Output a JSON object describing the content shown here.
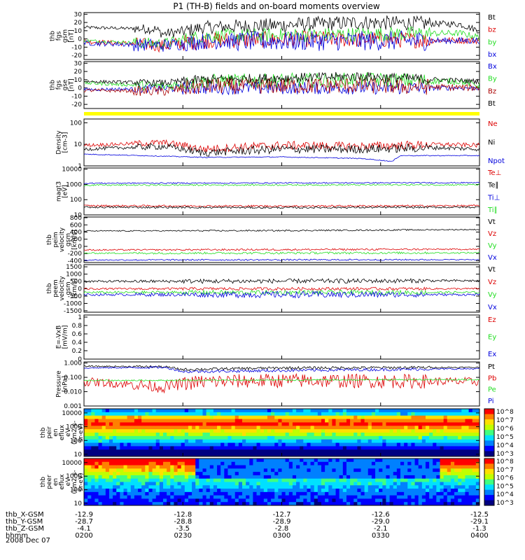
{
  "title": "P1 (TH-B) fields and on-board moments overview",
  "date": "2008 Dec 07",
  "colors": {
    "black": "#000000",
    "red": "#dd0000",
    "green": "#22dd22",
    "blue": "#0000dd",
    "darkred": "#aa0000",
    "yellow": "#ffff00"
  },
  "chart_data": [
    {
      "type": "line",
      "panel": "fgs-gsm",
      "ylabel": [
        "thb",
        "fgs",
        "gsm",
        "[nT]"
      ],
      "yticks": [
        30,
        20,
        10,
        0,
        -10,
        -20
      ],
      "ylim": [
        -25,
        32
      ],
      "series": [
        {
          "name": "Bt",
          "color": "black",
          "trace": [
            [
              0,
              14
            ],
            [
              0.18,
              12
            ],
            [
              0.2,
              6
            ],
            [
              0.26,
              10
            ],
            [
              0.3,
              14
            ],
            [
              0.45,
              16
            ],
            [
              0.7,
              20
            ],
            [
              0.95,
              18
            ],
            [
              1,
              10
            ]
          ],
          "noise": [
            2,
            6,
            8,
            9,
            9,
            9,
            9,
            4
          ]
        },
        {
          "name": "bz",
          "color": "red",
          "trace": [
            [
              0,
              -3
            ],
            [
              0.2,
              -8
            ],
            [
              0.3,
              -2
            ],
            [
              0.6,
              0
            ],
            [
              1,
              -2
            ]
          ],
          "noise": [
            3,
            8,
            10,
            10,
            10,
            10,
            10,
            4
          ]
        },
        {
          "name": "by",
          "color": "green",
          "trace": [
            [
              0,
              -2
            ],
            [
              0.2,
              -6
            ],
            [
              0.3,
              3
            ],
            [
              0.6,
              5
            ],
            [
              0.95,
              7
            ],
            [
              1,
              2
            ]
          ],
          "noise": [
            2,
            7,
            9,
            9,
            9,
            9,
            9,
            4
          ]
        },
        {
          "name": "bx",
          "color": "blue",
          "trace": [
            [
              0,
              -5
            ],
            [
              0.2,
              -8
            ],
            [
              0.3,
              -3
            ],
            [
              1,
              -2
            ]
          ],
          "noise": [
            3,
            8,
            10,
            12,
            12,
            12,
            12,
            4
          ]
        }
      ]
    },
    {
      "type": "line",
      "panel": "fgs-gse",
      "ylabel": [
        "thb",
        "fgs",
        "gse",
        "[nT]"
      ],
      "yticks": [
        30,
        20,
        10,
        0,
        -10,
        -20
      ],
      "ylim": [
        -25,
        32
      ],
      "series": [
        {
          "name": "Bx",
          "color": "blue",
          "trace": [
            [
              0,
              -2
            ],
            [
              0.3,
              0
            ],
            [
              1,
              0
            ]
          ],
          "noise": [
            2,
            5,
            8,
            8,
            8,
            8,
            8,
            3
          ]
        },
        {
          "name": "By",
          "color": "green",
          "trace": [
            [
              0,
              6
            ],
            [
              0.2,
              2
            ],
            [
              0.3,
              8
            ],
            [
              0.7,
              10
            ],
            [
              0.95,
              8
            ],
            [
              1,
              3
            ]
          ],
          "noise": [
            2,
            6,
            9,
            9,
            9,
            9,
            9,
            4
          ]
        },
        {
          "name": "Bz",
          "color": "darkred",
          "trace": [
            [
              0,
              -3
            ],
            [
              0.2,
              -4
            ],
            [
              0.3,
              2
            ],
            [
              0.7,
              3
            ],
            [
              1,
              0
            ]
          ],
          "noise": [
            2,
            6,
            10,
            10,
            10,
            10,
            10,
            4
          ]
        },
        {
          "name": "Bt",
          "color": "black",
          "trace": [
            [
              0,
              8
            ],
            [
              0.2,
              6
            ],
            [
              0.3,
              10
            ],
            [
              0.7,
              14
            ],
            [
              1,
              8
            ]
          ],
          "noise": [
            2,
            4,
            6,
            6,
            6,
            6,
            6,
            3
          ]
        }
      ]
    },
    {
      "type": "bar",
      "panel": "status",
      "series": [
        {
          "name": "status",
          "color": "yellow",
          "values": [
            1
          ]
        }
      ]
    },
    {
      "type": "line",
      "panel": "density",
      "log": true,
      "ylabel": [
        "Density",
        "[cm-3]"
      ],
      "yticks": [
        100,
        10,
        1
      ],
      "ylim": [
        1,
        150
      ],
      "series": [
        {
          "name": "Ne",
          "color": "red",
          "trace": [
            [
              0,
              9
            ],
            [
              0.2,
              12
            ],
            [
              0.3,
              6
            ],
            [
              0.5,
              9
            ],
            [
              0.7,
              8
            ],
            [
              0.9,
              10
            ],
            [
              1,
              9
            ]
          ],
          "noise": [
            0.08,
            0.15,
            0.18,
            0.2,
            0.2,
            0.2,
            0.2,
            0.1
          ]
        },
        {
          "name": "Ni",
          "color": "black",
          "trace": [
            [
              0,
              6
            ],
            [
              0.2,
              8
            ],
            [
              0.3,
              4
            ],
            [
              0.5,
              6
            ],
            [
              0.7,
              6
            ],
            [
              0.9,
              7
            ],
            [
              1,
              6
            ]
          ],
          "noise": [
            0.08,
            0.15,
            0.18,
            0.2,
            0.2,
            0.2,
            0.2,
            0.1
          ]
        },
        {
          "name": "Npot",
          "color": "blue",
          "trace": [
            [
              0,
              3.5
            ],
            [
              0.3,
              2.5
            ],
            [
              0.5,
              2.6
            ],
            [
              0.7,
              2.2
            ],
            [
              0.78,
              1.6
            ],
            [
              0.8,
              3
            ],
            [
              1,
              3
            ]
          ],
          "noise": [
            0.02,
            0.02,
            0.02,
            0.02,
            0.02,
            0.02,
            0.02,
            0.02
          ]
        }
      ]
    },
    {
      "type": "line",
      "panel": "temperature",
      "log": true,
      "ylabel": [
        "magt3",
        "[eV]"
      ],
      "yticks": [
        10000,
        1000,
        100,
        10
      ],
      "ylim": [
        10,
        12000
      ],
      "series": [
        {
          "name": "Te⊥",
          "color": "red",
          "trace": [
            [
              0,
              40
            ],
            [
              0.5,
              38
            ],
            [
              1,
              40
            ]
          ],
          "noise": [
            0.06,
            0.06,
            0.06,
            0.06,
            0.06,
            0.06,
            0.06,
            0.06
          ]
        },
        {
          "name": "Te∥",
          "color": "black",
          "trace": [
            [
              0,
              32
            ],
            [
              0.5,
              30
            ],
            [
              1,
              32
            ]
          ],
          "noise": [
            0.06,
            0.06,
            0.06,
            0.06,
            0.06,
            0.06,
            0.06,
            0.06
          ]
        },
        {
          "name": "Ti⊥",
          "color": "blue",
          "trace": [
            [
              0,
              1200
            ],
            [
              1,
              1300
            ]
          ],
          "noise": [
            0.04,
            0.04,
            0.04,
            0.04,
            0.04,
            0.04,
            0.04,
            0.04
          ]
        },
        {
          "name": "Ti∥",
          "color": "green",
          "trace": [
            [
              0,
              900
            ],
            [
              1,
              950
            ]
          ],
          "noise": [
            0.05,
            0.05,
            0.05,
            0.05,
            0.05,
            0.05,
            0.05,
            0.05
          ]
        }
      ]
    },
    {
      "type": "line",
      "panel": "peim-velocity",
      "ylabel": [
        "thb",
        "peim",
        "velocity",
        "gsm",
        "[km/s]"
      ],
      "yticks": [
        800,
        600,
        400,
        200,
        0,
        -200,
        -400
      ],
      "ylim": [
        -450,
        820
      ],
      "series": [
        {
          "name": "Vt",
          "color": "black",
          "trace": [
            [
              0,
              430
            ],
            [
              0.5,
              440
            ],
            [
              1,
              470
            ]
          ],
          "noise": [
            15,
            15,
            20,
            20,
            20,
            20,
            20,
            15
          ]
        },
        {
          "name": "Vz",
          "color": "red",
          "trace": [
            [
              0,
              -100
            ],
            [
              1,
              -80
            ]
          ],
          "noise": [
            20,
            20,
            25,
            25,
            25,
            25,
            25,
            20
          ]
        },
        {
          "name": "Vy",
          "color": "green",
          "trace": [
            [
              0,
              -190
            ],
            [
              1,
              -180
            ]
          ],
          "noise": [
            20,
            30,
            30,
            30,
            30,
            30,
            30,
            20
          ]
        },
        {
          "name": "Vx",
          "color": "blue",
          "trace": [
            [
              0,
              -380
            ],
            [
              1,
              -370
            ]
          ],
          "noise": [
            15,
            20,
            20,
            20,
            20,
            20,
            20,
            15
          ]
        }
      ]
    },
    {
      "type": "line",
      "panel": "peem-velocity",
      "ylabel": [
        "thb",
        "peem",
        "velocity",
        "gsm",
        "[km/s]"
      ],
      "yticks": [
        1500,
        1000,
        500,
        0,
        -500,
        -1000,
        -1500
      ],
      "ylim": [
        -1600,
        1650
      ],
      "series": [
        {
          "name": "Vt",
          "color": "black",
          "trace": [
            [
              0,
              500
            ],
            [
              1,
              550
            ]
          ],
          "noise": [
            80,
            100,
            150,
            150,
            150,
            150,
            150,
            80
          ]
        },
        {
          "name": "Vz",
          "color": "red",
          "trace": [
            [
              0,
              0
            ],
            [
              1,
              0
            ]
          ],
          "noise": [
            60,
            80,
            100,
            100,
            100,
            100,
            100,
            60
          ]
        },
        {
          "name": "Vy",
          "color": "green",
          "trace": [
            [
              0,
              -250
            ],
            [
              1,
              -250
            ]
          ],
          "noise": [
            80,
            100,
            150,
            150,
            150,
            150,
            150,
            80
          ]
        },
        {
          "name": "Vx",
          "color": "blue",
          "trace": [
            [
              0,
              -400
            ],
            [
              1,
              -400
            ]
          ],
          "noise": [
            80,
            120,
            180,
            220,
            220,
            220,
            180,
            80
          ]
        }
      ]
    },
    {
      "type": "line",
      "panel": "efield",
      "ylabel": [
        "E=-VxB",
        "[mV/m]"
      ],
      "yticks": [
        1.0,
        0.8,
        0.6,
        0.4,
        0.2,
        0.0
      ],
      "ylim": [
        0,
        1.05
      ],
      "series": [
        {
          "name": "Ez",
          "color": "red",
          "trace": []
        },
        {
          "name": "Ey",
          "color": "green",
          "trace": []
        },
        {
          "name": "Ex",
          "color": "blue",
          "trace": []
        }
      ]
    },
    {
      "type": "line",
      "panel": "pressure",
      "log": true,
      "ylabel": [
        "Pressure",
        "[nPa]"
      ],
      "yticks": [
        "1.000",
        "0.100",
        "0.010",
        "0.001"
      ],
      "ylim": [
        0.001,
        1.2
      ],
      "series": [
        {
          "name": "Pt",
          "color": "black",
          "trace": [
            [
              0,
              0.6
            ],
            [
              0.2,
              0.55
            ],
            [
              0.25,
              0.35
            ],
            [
              0.5,
              0.45
            ],
            [
              1,
              0.5
            ]
          ],
          "noise": [
            0.05,
            0.08,
            0.1,
            0.1,
            0.1,
            0.1,
            0.1,
            0.05
          ]
        },
        {
          "name": "Pb",
          "color": "red",
          "trace": [
            [
              0,
              0.05
            ],
            [
              0.2,
              0.02
            ],
            [
              0.3,
              0.05
            ],
            [
              0.5,
              0.06
            ],
            [
              1,
              0.05
            ]
          ],
          "noise": [
            0.3,
            0.4,
            0.5,
            0.5,
            0.5,
            0.5,
            0.5,
            0.3
          ]
        },
        {
          "name": "Pe",
          "color": "green",
          "trace": [
            [
              0,
              0.06
            ],
            [
              1,
              0.07
            ]
          ],
          "noise": [
            0.05,
            0.05,
            0.05,
            0.05,
            0.05,
            0.05,
            0.05,
            0.05
          ]
        },
        {
          "name": "Pi",
          "color": "blue",
          "trace": [
            [
              0,
              0.45
            ],
            [
              0.2,
              0.5
            ],
            [
              0.25,
              0.25
            ],
            [
              1,
              0.4
            ]
          ],
          "noise": [
            0.05,
            0.08,
            0.1,
            0.1,
            0.1,
            0.1,
            0.1,
            0.05
          ]
        }
      ]
    },
    {
      "type": "heatmap",
      "panel": "peir-spectrogram",
      "ylabel": [
        "thb",
        "peir",
        "en",
        "eflux",
        "eV",
        "(cm2-s-",
        "sr-eV)"
      ],
      "yticks": [
        10000,
        1000,
        100,
        10
      ],
      "ylim": [
        7,
        20000
      ],
      "colorbar": [
        "10^8",
        "10^7",
        "10^6",
        "10^5",
        "10^4",
        "10^3"
      ]
    },
    {
      "type": "heatmap",
      "panel": "peer-spectrogram",
      "ylabel": [
        "thb",
        "peer",
        "en",
        "eflux",
        "eV",
        "(cm2-s-",
        "sr-eV)"
      ],
      "yticks": [
        10000,
        1000,
        100,
        10
      ],
      "ylim": [
        7,
        20000
      ],
      "colorbar": [
        "10^8",
        "10^7",
        "10^6",
        "10^5",
        "10^4",
        "10^3"
      ]
    }
  ],
  "xaxis": {
    "rows": [
      {
        "label": "thb_X-GSM",
        "values": [
          "-12.9",
          "-12.8",
          "-12.7",
          "-12.6",
          "-12.5"
        ]
      },
      {
        "label": "thb_Y-GSM",
        "values": [
          "-28.7",
          "-28.8",
          "-28.9",
          "-29.0",
          "-29.1"
        ]
      },
      {
        "label": "thb_Z-GSM",
        "values": [
          "-4.1",
          "-3.5",
          "-2.8",
          "-2.1",
          "-1.3"
        ]
      },
      {
        "label": "hhmm",
        "values": [
          "0200",
          "0230",
          "0300",
          "0330",
          "0400"
        ]
      }
    ]
  }
}
